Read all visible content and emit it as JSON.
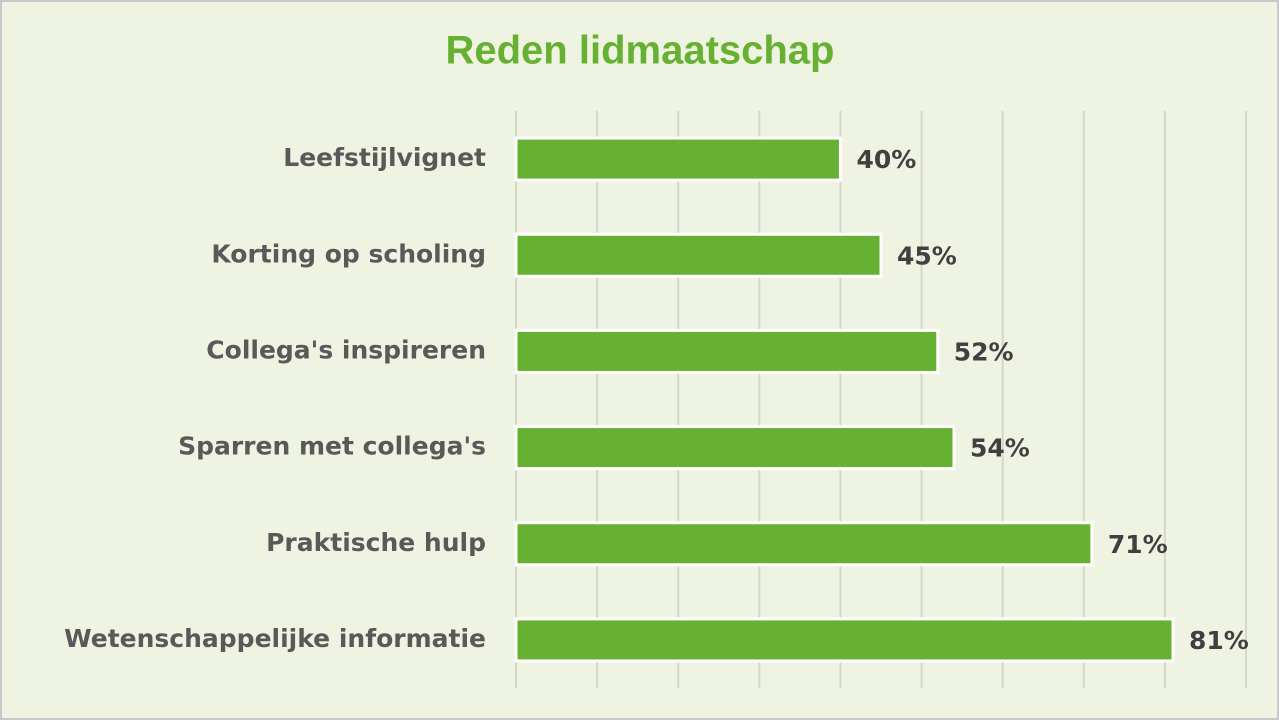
{
  "chart_data": {
    "type": "bar",
    "orientation": "horizontal",
    "title": "Reden lidmaatschap",
    "categories": [
      "Leefstijlvignet",
      "Korting op scholing",
      "Collega's inspireren",
      "Sparren met collega's",
      "Praktische hulp",
      "Wetenschappelijke informatie"
    ],
    "values": [
      40,
      45,
      52,
      54,
      71,
      81
    ],
    "value_labels": [
      "40%",
      "45%",
      "52%",
      "54%",
      "71%",
      "81%"
    ],
    "color": "#66b032",
    "xlim": [
      0,
      90
    ],
    "xticks": [
      0,
      10,
      20,
      30,
      40,
      50,
      60,
      70,
      80,
      90
    ],
    "grid": true
  }
}
